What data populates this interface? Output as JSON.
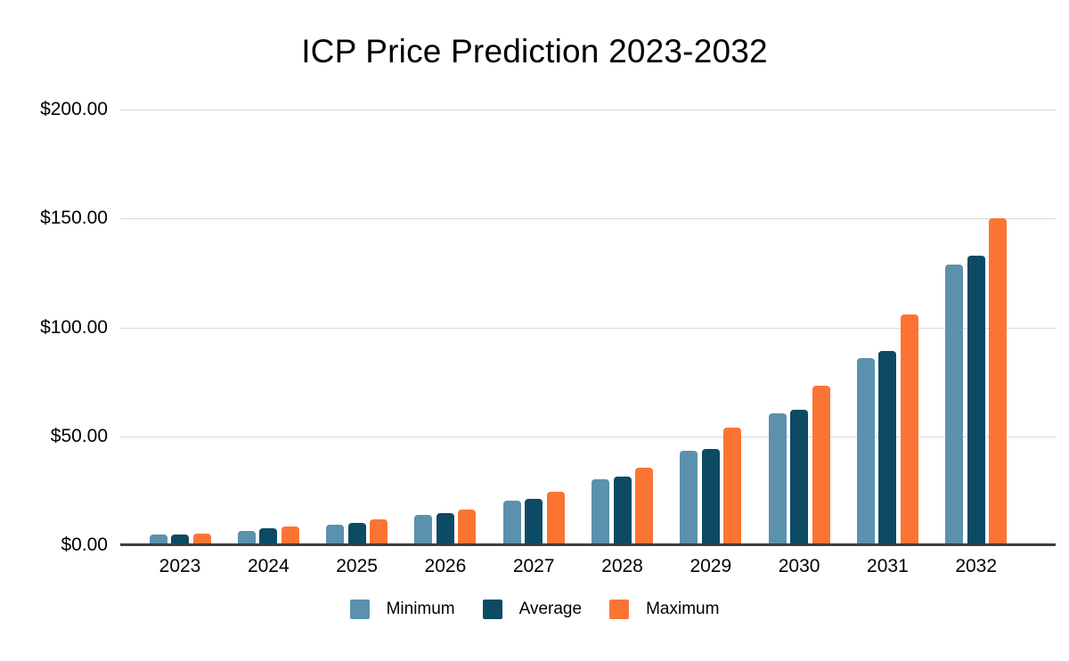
{
  "chart": {
    "title": "ICP Price Prediction 2023-2032"
  },
  "chart_data": {
    "type": "bar",
    "title": "ICP Price Prediction 2023-2032",
    "xlabel": "",
    "ylabel": "",
    "ylim": [
      0,
      200
    ],
    "grid": true,
    "legend_position": "bottom",
    "background_color": "#ffffff",
    "gridline_color": "#d9d9d9",
    "axis_line_color": "#3e3e3e",
    "yticks": [
      {
        "value": 200,
        "label": "$200.00"
      },
      {
        "value": 150,
        "label": "$150.00"
      },
      {
        "value": 100,
        "label": "$100.00"
      },
      {
        "value": 50,
        "label": "$50.00"
      },
      {
        "value": 0,
        "label": "$0.00"
      }
    ],
    "categories": [
      "2023",
      "2024",
      "2025",
      "2026",
      "2027",
      "2028",
      "2029",
      "2030",
      "2031",
      "2032"
    ],
    "series": [
      {
        "name": "Minimum",
        "color": "#5B91AD",
        "values": [
          4.9,
          6.6,
          9.3,
          13.8,
          20.6,
          30.2,
          43.2,
          60.6,
          85.8,
          128.9
        ]
      },
      {
        "name": "Average",
        "color": "#0D4A64",
        "values": [
          5.1,
          7.7,
          10.4,
          14.8,
          21.3,
          31.6,
          44.0,
          62.3,
          89.2,
          133.1
        ]
      },
      {
        "name": "Maximum",
        "color": "#FC7434",
        "values": [
          5.2,
          8.5,
          11.7,
          16.3,
          24.6,
          35.7,
          53.8,
          73.4,
          105.9,
          150.0
        ]
      }
    ]
  }
}
